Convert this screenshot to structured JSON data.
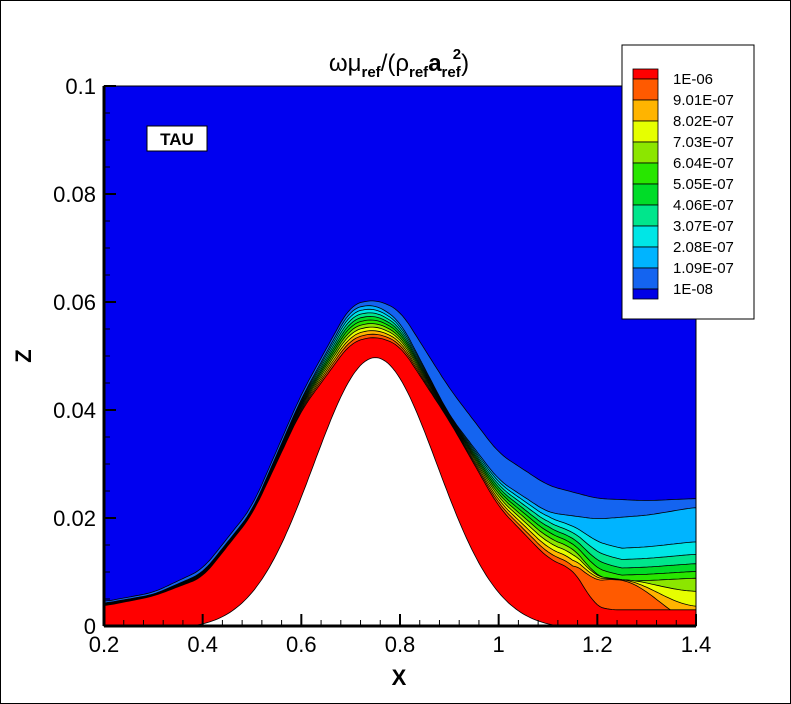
{
  "chart_data": {
    "type": "contour",
    "title": {
      "main_a": "ωμ",
      "sub_a": "ref",
      "main_b": "/(ρ",
      "sub_b": "ref",
      "main_c": "a",
      "sub_c": "ref",
      "sup_c": "2",
      "main_d": ")"
    },
    "xlabel": "X",
    "ylabel": "Z",
    "xlim": [
      0.2,
      1.4
    ],
    "ylim": [
      0,
      0.1
    ],
    "x_ticks": [
      "0.2",
      "0.4",
      "0.6",
      "0.8",
      "1",
      "1.2",
      "1.4"
    ],
    "y_ticks": [
      "0",
      "0.02",
      "0.04",
      "0.06",
      "0.08",
      "0.1"
    ],
    "annotation": "TAU",
    "legend": {
      "placement": "top-right",
      "labels": [
        "1E-06",
        "9.01E-07",
        "8.02E-07",
        "7.03E-07",
        "6.04E-07",
        "5.05E-07",
        "4.06E-07",
        "3.07E-07",
        "2.08E-07",
        "1.09E-07",
        "1E-08"
      ],
      "colors": [
        "#ff0000",
        "#ff5a00",
        "#ffb400",
        "#e6ff00",
        "#8ce600",
        "#28e600",
        "#00dc28",
        "#00e68c",
        "#00e6e6",
        "#00b4ff",
        "#1464f0",
        "#0000e6"
      ]
    },
    "background_color": "#0000f0",
    "body_color": "#ffffff"
  }
}
